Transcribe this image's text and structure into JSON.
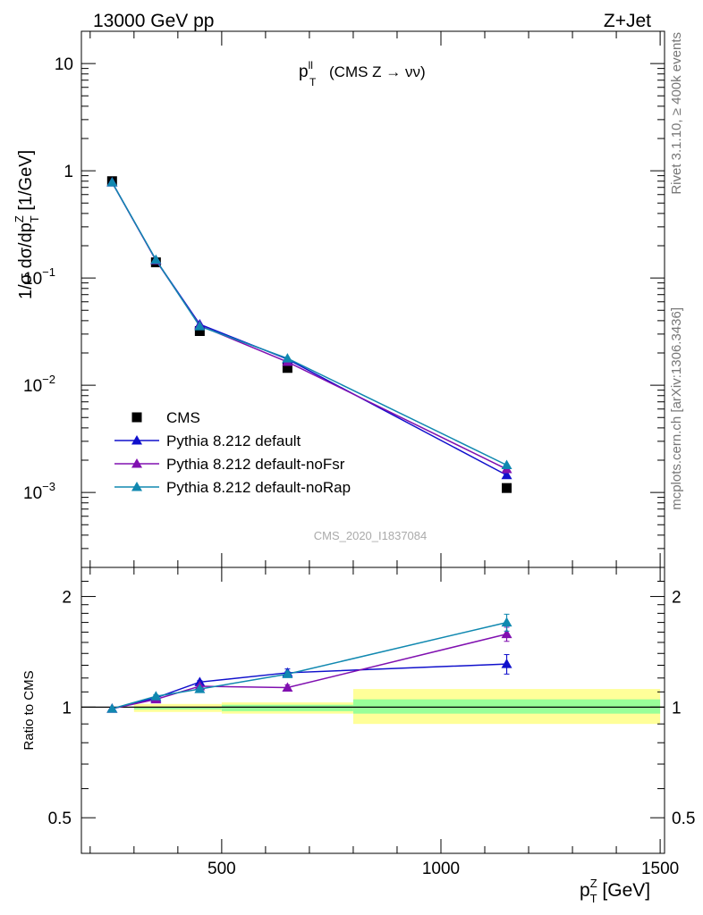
{
  "header": {
    "left": "13000 GeV pp",
    "right": "Z+Jet"
  },
  "side": {
    "rivet": "Rivet 3.1.10, ≥ 400k events",
    "mcplots": "mcplots.cern.ch [arXiv:1306.3436]"
  },
  "plot_title": {
    "main": "p",
    "sup": "ll",
    "sub": "T",
    "rest": "(CMS Z → νν)"
  },
  "watermark": "CMS_2020_I1837084",
  "colors": {
    "data": "#000000",
    "default": "#1010cc",
    "noFsr": "#8010b0",
    "noRap": "#1088b0",
    "band_outer": "#ffff99",
    "band_inner": "#99ff99"
  },
  "chart_data": [
    {
      "type": "scatter",
      "panel": "main",
      "ylabel": "1/σ dσ/dp_T^Z [1/GeV]",
      "yscale": "log",
      "ylim": [
        0.0002,
        20
      ],
      "xlim": [
        180,
        1510
      ],
      "yticks": [
        {
          "value": 10,
          "label": "10"
        },
        {
          "value": 1,
          "label": "1"
        },
        {
          "value": 0.1,
          "label": "10",
          "exp": "−1"
        },
        {
          "value": 0.01,
          "label": "10",
          "exp": "−2"
        },
        {
          "value": 0.001,
          "label": "10",
          "exp": "−3"
        }
      ],
      "legend": "lower-left",
      "series": [
        {
          "name": "CMS",
          "key": "data",
          "marker": "square",
          "x": [
            250,
            350,
            450,
            650,
            1150
          ],
          "y": [
            0.8,
            0.14,
            0.032,
            0.0145,
            0.0011
          ]
        },
        {
          "name": "Pythia 8.212 default",
          "key": "default",
          "marker": "triangle",
          "x": [
            250,
            350,
            450,
            650,
            1150
          ],
          "y": [
            0.78,
            0.147,
            0.037,
            0.0175,
            0.00145
          ]
        },
        {
          "name": "Pythia 8.212 default-noFsr",
          "key": "noFsr",
          "marker": "triangle",
          "x": [
            250,
            350,
            450,
            650,
            1150
          ],
          "y": [
            0.78,
            0.146,
            0.036,
            0.0165,
            0.00165
          ]
        },
        {
          "name": "Pythia 8.212 default-noRap",
          "key": "noRap",
          "marker": "triangle",
          "x": [
            250,
            350,
            450,
            650,
            1150
          ],
          "y": [
            0.78,
            0.148,
            0.0355,
            0.0178,
            0.0018
          ]
        }
      ]
    },
    {
      "type": "line",
      "panel": "ratio",
      "ylabel": "Ratio to CMS",
      "xlabel": "p_T^Z [GeV]",
      "yscale": "log",
      "ylim": [
        0.4,
        2.4
      ],
      "xlim": [
        180,
        1510
      ],
      "xticks": [
        500,
        1000,
        1500
      ],
      "yticks": [
        {
          "value": 2,
          "label": "2"
        },
        {
          "value": 1,
          "label": "1"
        },
        {
          "value": 0.5,
          "label": "0.5"
        }
      ],
      "bands": [
        {
          "x0": 300,
          "x1": 500,
          "outer": [
            0.97,
            1.02
          ],
          "inner": [
            0.985,
            1.0
          ]
        },
        {
          "x0": 500,
          "x1": 800,
          "outer": [
            0.96,
            1.03
          ],
          "inner": [
            0.975,
            1.015
          ]
        },
        {
          "x0": 800,
          "x1": 1500,
          "outer": [
            0.9,
            1.12
          ],
          "inner": [
            0.96,
            1.05
          ]
        }
      ],
      "series": [
        {
          "name": "Pythia 8.212 default",
          "key": "default",
          "x": [
            250,
            350,
            450,
            650,
            1150
          ],
          "y": [
            0.99,
            1.06,
            1.17,
            1.24,
            1.31
          ],
          "err": [
            0,
            0.01,
            0.01,
            0.03,
            0.08
          ]
        },
        {
          "name": "Pythia 8.212 default-noFsr",
          "key": "noFsr",
          "x": [
            250,
            350,
            450,
            650,
            1150
          ],
          "y": [
            0.99,
            1.05,
            1.14,
            1.13,
            1.58
          ],
          "err": [
            0,
            0.01,
            0.01,
            0.02,
            0.07
          ]
        },
        {
          "name": "Pythia 8.212 default-noRap",
          "key": "noRap",
          "x": [
            250,
            350,
            450,
            650,
            1150
          ],
          "y": [
            0.99,
            1.07,
            1.12,
            1.23,
            1.7
          ],
          "err": [
            0,
            0.01,
            0.01,
            0.02,
            0.09
          ]
        }
      ]
    }
  ]
}
